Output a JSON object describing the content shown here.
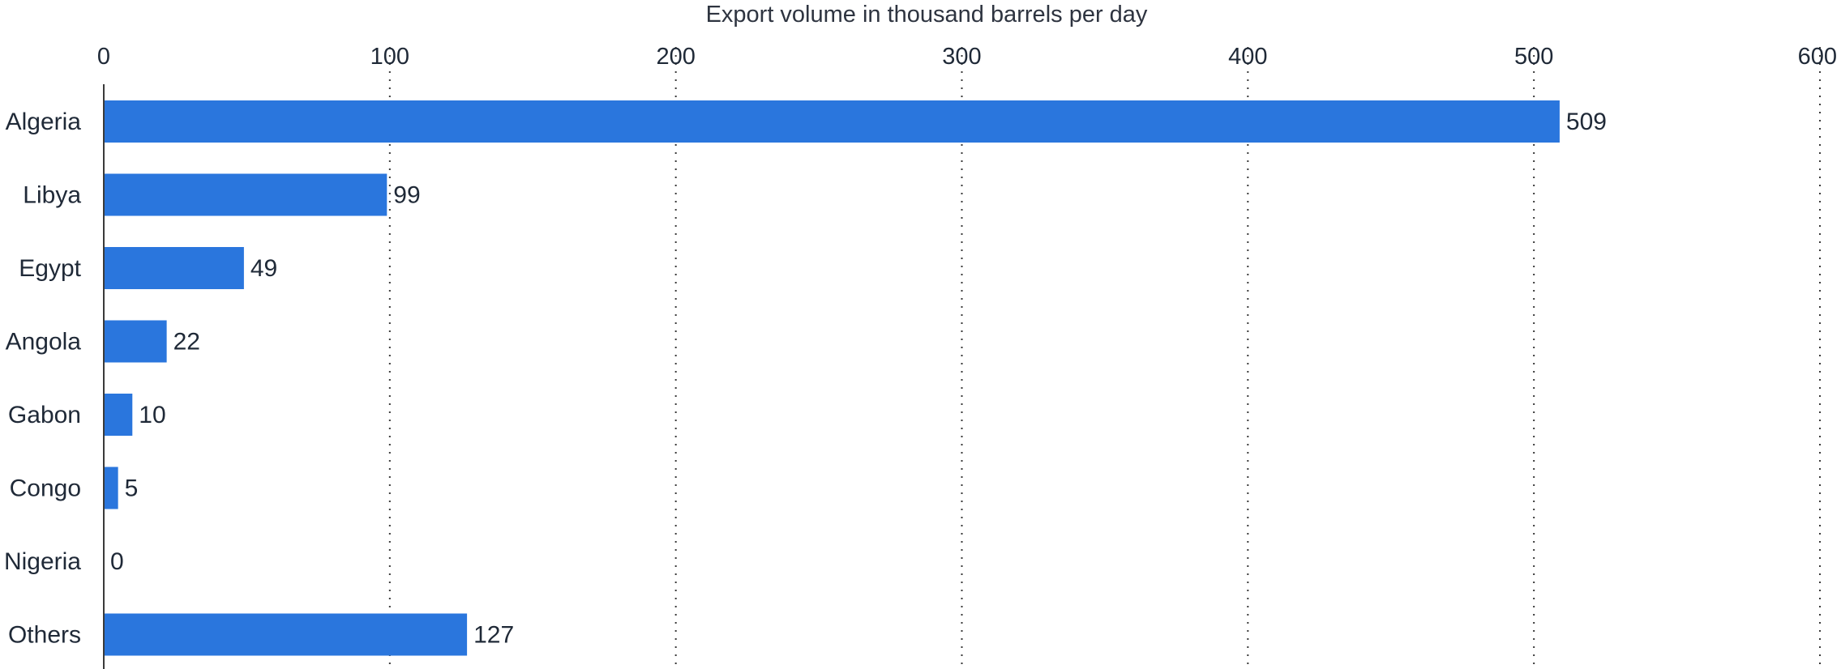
{
  "chart_data": {
    "type": "bar",
    "orientation": "horizontal",
    "xlabel": "Export volume in thousand barrels per day",
    "ylabel": "",
    "categories": [
      "Algeria",
      "Libya",
      "Egypt",
      "Angola",
      "Gabon",
      "Congo",
      "Nigeria",
      "Others"
    ],
    "values": [
      509,
      99,
      49,
      22,
      10,
      5,
      0,
      127
    ],
    "xlim": [
      0,
      600
    ],
    "x_ticks": [
      "0",
      "100",
      "200",
      "300",
      "400",
      "500",
      "600"
    ],
    "axis_position": "top",
    "grid": true,
    "legend": "none",
    "bar_color": "#2a76dd"
  }
}
